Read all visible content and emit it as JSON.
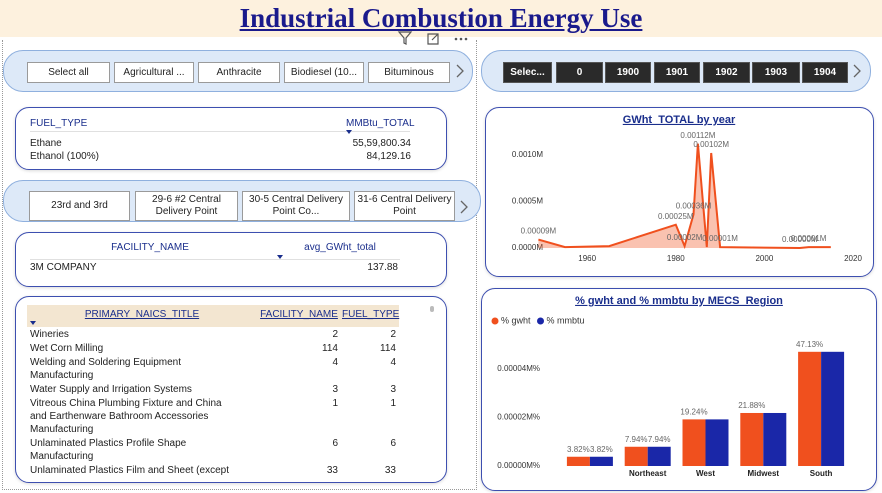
{
  "header": {
    "title": "Industrial Combustion Energy Use"
  },
  "fuel_slicer": {
    "items": [
      "Select all",
      "Agricultural ...",
      "Anthracite",
      "Biodiesel (10...",
      "Bituminous"
    ]
  },
  "year_slicer": {
    "items": [
      "Selec...",
      "0",
      "1900",
      "1901",
      "1902",
      "1903",
      "1904"
    ]
  },
  "fuel_table": {
    "columns": [
      "FUEL_TYPE",
      "MMBtu_TOTAL"
    ],
    "rows": [
      [
        "Ethane",
        "55,59,800.34"
      ],
      [
        "Ethanol (100%)",
        "84,129.16"
      ]
    ]
  },
  "facility_slicer": {
    "items": [
      "23rd and 3rd",
      "29-6 #2 Central Delivery Point",
      "30-5 Central Delivery Point Co...",
      "31-6 Central Delivery Point"
    ]
  },
  "facility_table": {
    "columns": [
      "FACILITY_NAME",
      "avg_GWht_total"
    ],
    "rows": [
      [
        "3M COMPANY",
        "137.88"
      ]
    ]
  },
  "naics_table": {
    "columns": [
      "PRIMARY_NAICS_TITLE",
      "FACILITY_NAME",
      "FUEL_TYPE"
    ],
    "rows": [
      [
        "Wineries",
        "2",
        "2"
      ],
      [
        "Wet Corn Milling",
        "114",
        "114"
      ],
      [
        "Welding and Soldering Equipment Manufacturing",
        "4",
        "4"
      ],
      [
        "Water Supply and Irrigation Systems",
        "3",
        "3"
      ],
      [
        "Vitreous China Plumbing Fixture and China and Earthenware Bathroom Accessories Manufacturing",
        "1",
        "1"
      ],
      [
        "Unlaminated Plastics Profile Shape Manufacturing",
        "6",
        "6"
      ],
      [
        "Unlaminated Plastics Film and Sheet (except",
        "33",
        "33"
      ]
    ]
  },
  "chart_data": [
    {
      "type": "line",
      "title": "GWht_TOTAL by year",
      "color": "#f0501e",
      "x": [
        1949,
        1955,
        1965,
        1980,
        1982,
        1984,
        1985,
        1987,
        1988,
        1990,
        2008,
        2010,
        2015
      ],
      "values": [
        9e-05,
        1e-05,
        2e-05,
        0.00025,
        2e-05,
        0.00036,
        0.00112,
        1e-05,
        0.00102,
        1e-05,
        0,
        1e-05,
        1e-05
      ],
      "value_labels": [
        "0.00009M",
        null,
        null,
        "0.00025M",
        "0.00002M",
        "0.00036M",
        "0.00112M",
        null,
        "0.00102M",
        "0.00001M",
        "0.00000M",
        "0.00001M",
        null
      ],
      "xlim": [
        1948,
        2020
      ],
      "xticks": [
        1960,
        1980,
        2000,
        2020
      ],
      "ylim": [
        0,
        0.00116
      ],
      "yticks": [
        {
          "value": 0,
          "label": "0.0000M"
        },
        {
          "value": 0.0005,
          "label": "0.0005M"
        },
        {
          "value": 0.001,
          "label": "0.0010M"
        }
      ]
    },
    {
      "type": "bar",
      "title": "% gwht and % mmbtu by MECS_Region",
      "categories": [
        null,
        "Northeast",
        "West",
        "Midwest",
        "South"
      ],
      "series": [
        {
          "name": "% gwht",
          "color": "#f0501e",
          "values": [
            3.82,
            7.94,
            19.24,
            21.88,
            47.13
          ],
          "value_labels": [
            "3.82%",
            "7.94%",
            "19.24%",
            "21.88%",
            "47.13%"
          ]
        },
        {
          "name": "% mmbtu",
          "color": "#1a27a8",
          "values": [
            3.82,
            7.94,
            19.24,
            21.88,
            47.13
          ],
          "value_labels": [
            "3.82%",
            "7.94%",
            null,
            null,
            null
          ]
        }
      ],
      "ylim": [
        0,
        52
      ],
      "yticks": [
        {
          "value": 0,
          "label": "0.00000M%"
        },
        {
          "value": 20,
          "label": "0.00002M%"
        },
        {
          "value": 40,
          "label": "0.00004M%"
        }
      ],
      "legend": "top-left"
    }
  ]
}
